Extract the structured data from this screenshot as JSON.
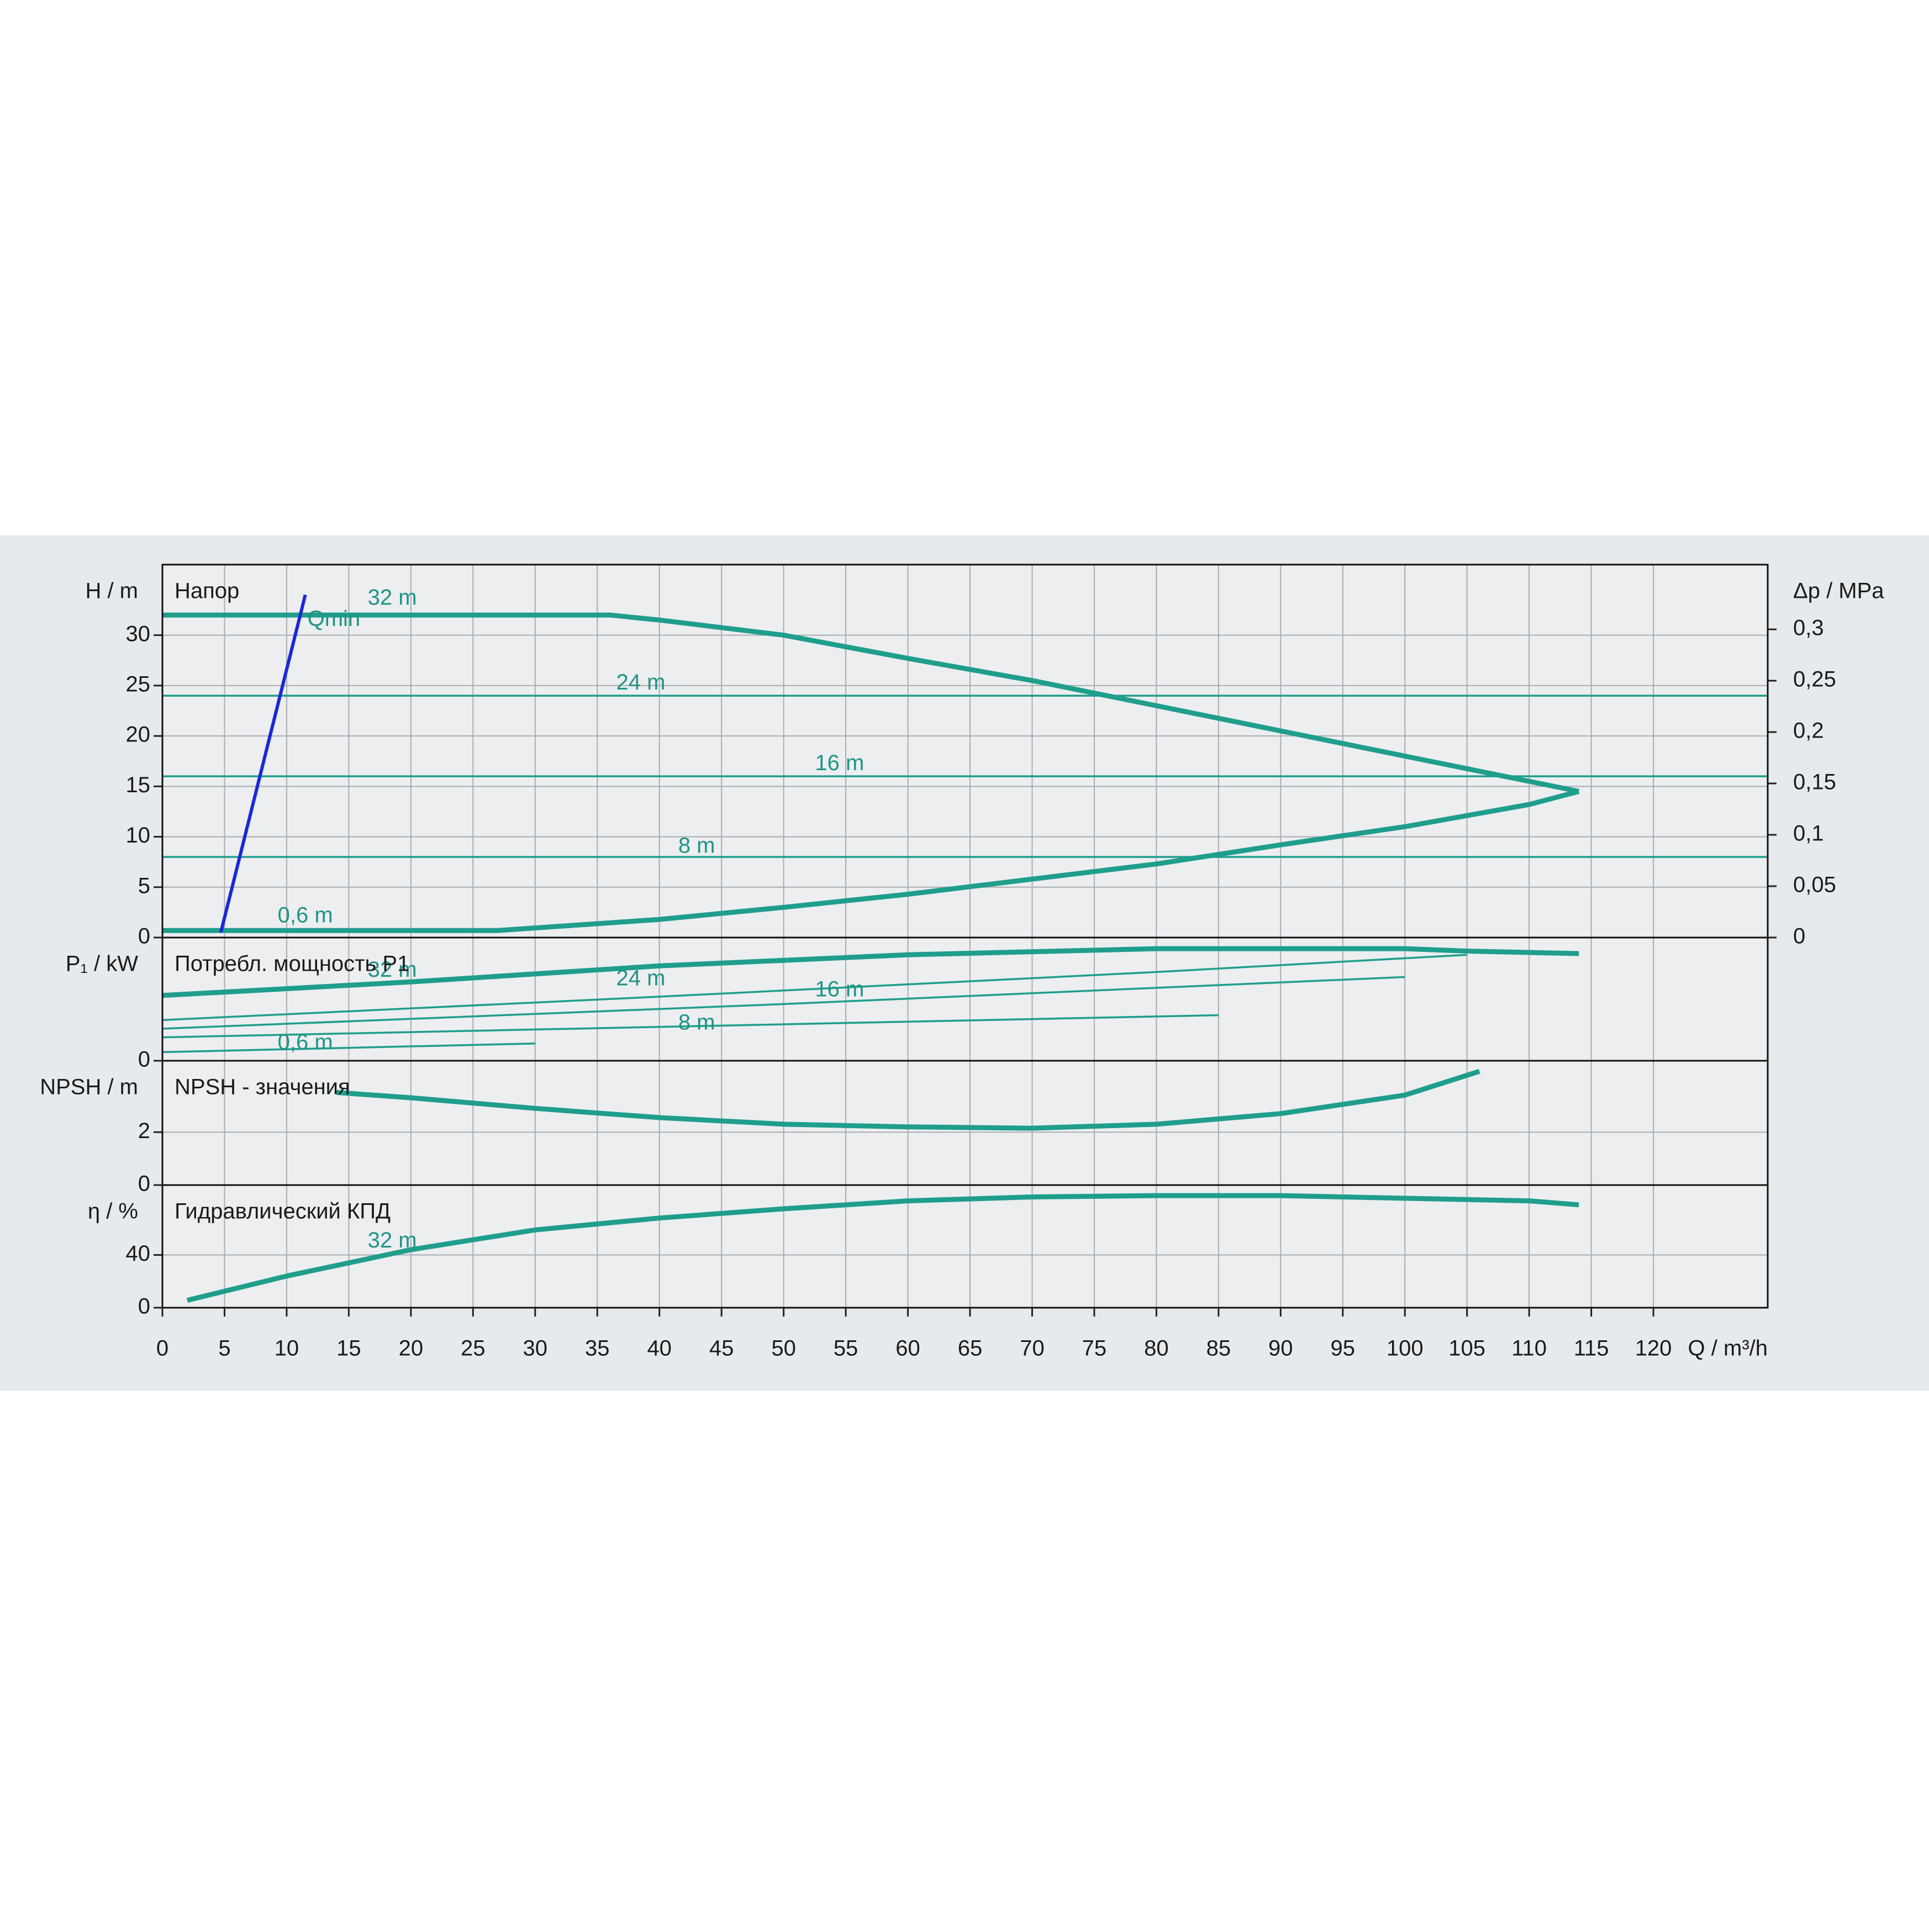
{
  "chart_data": [
    {
      "type": "line",
      "title": "Напор",
      "ylabel": "H / m",
      "y2label": "Δp / MPa",
      "xlim": [
        0,
        129.2
      ],
      "ylim": [
        0,
        37
      ],
      "yticks": [
        0,
        5,
        10,
        15,
        20,
        25,
        30
      ],
      "y2lim": [
        0,
        0.363
      ],
      "y2ticks": [
        0,
        {
          "value": 0.05,
          "label": "0,05"
        },
        {
          "value": 0.1,
          "label": "0,1"
        },
        {
          "value": 0.15,
          "label": "0,15"
        },
        {
          "value": 0.2,
          "label": "0,2"
        },
        {
          "value": 0.25,
          "label": "0,25"
        },
        {
          "value": 0.3,
          "label": "0,3"
        }
      ],
      "grid": true,
      "series": [
        {
          "name": "32 m",
          "color": "#1f9e8c",
          "x": [
            0,
            36,
            40,
            50,
            60,
            70,
            80,
            90,
            100,
            110,
            114
          ],
          "values": [
            32,
            32,
            31.5,
            30,
            27.7,
            25.5,
            23,
            20.5,
            18,
            15.5,
            14.5
          ]
        },
        {
          "name": "24 m",
          "color": "#1f9e8c",
          "x": [
            0,
            129.2
          ],
          "values": [
            24,
            24
          ]
        },
        {
          "name": "16 m",
          "color": "#1f9e8c",
          "x": [
            0,
            129.2
          ],
          "values": [
            16,
            16
          ]
        },
        {
          "name": "8 m",
          "color": "#1f9e8c",
          "x": [
            0,
            129.2
          ],
          "values": [
            8,
            8
          ]
        },
        {
          "name": "0,6 m",
          "color": "#1f9e8c",
          "x": [
            0,
            27,
            40,
            50,
            60,
            70,
            80,
            90,
            100,
            110,
            114
          ],
          "values": [
            0.7,
            0.7,
            1.8,
            3,
            4.3,
            5.8,
            7.3,
            9.2,
            11,
            13.2,
            14.5
          ]
        },
        {
          "name": "Qmin",
          "color": "#1a28d6",
          "x": [
            4.7,
            11.5
          ],
          "values": [
            0.5,
            34
          ]
        }
      ]
    },
    {
      "type": "line",
      "title": "Потребл. мощность P1",
      "ylabel": "P₁ / kW",
      "xlim": [
        0,
        129.2
      ],
      "ylim": [
        0,
        5
      ],
      "yticks": [
        0
      ],
      "grid": true,
      "series": [
        {
          "name": "32 m",
          "color": "#1f9e8c",
          "x": [
            0,
            20,
            40,
            60,
            80,
            100,
            105,
            114
          ],
          "values": [
            2.65,
            3.2,
            3.85,
            4.3,
            4.55,
            4.55,
            4.45,
            4.35
          ]
        },
        {
          "name": "24 m",
          "color": "#1f9e8c",
          "x": [
            0,
            40,
            80,
            105
          ],
          "values": [
            1.65,
            2.6,
            3.6,
            4.3
          ]
        },
        {
          "name": "16 m",
          "color": "#1f9e8c",
          "x": [
            0,
            50,
            100
          ],
          "values": [
            1.3,
            2.3,
            3.4
          ]
        },
        {
          "name": "8 m",
          "color": "#1f9e8c",
          "x": [
            0,
            85
          ],
          "values": [
            0.95,
            1.85
          ]
        },
        {
          "name": "0,6 m",
          "color": "#1f9e8c",
          "x": [
            0,
            30
          ],
          "values": [
            0.35,
            0.7
          ]
        }
      ]
    },
    {
      "type": "line",
      "title": "NPSH - значения",
      "ylabel": "NPSH / m",
      "xlim": [
        0,
        129.2
      ],
      "ylim": [
        0,
        4.7
      ],
      "yticks": [
        0,
        2
      ],
      "grid": true,
      "series": [
        {
          "color": "#1f9e8c",
          "x": [
            14,
            20,
            30,
            40,
            50,
            60,
            70,
            80,
            90,
            100,
            106
          ],
          "values": [
            3.5,
            3.3,
            2.9,
            2.55,
            2.3,
            2.2,
            2.15,
            2.3,
            2.7,
            3.4,
            4.3
          ]
        }
      ]
    },
    {
      "type": "line",
      "title": "Гидравлический КПД",
      "ylabel": "η / %",
      "xlabel": "Q / m³/h",
      "xlim": [
        0,
        129.2
      ],
      "ylim": [
        0,
        93
      ],
      "yticks": [
        0,
        40
      ],
      "xticks": [
        0,
        5,
        10,
        15,
        20,
        25,
        30,
        35,
        40,
        45,
        50,
        55,
        60,
        65,
        70,
        75,
        80,
        85,
        90,
        95,
        100,
        105,
        110,
        115,
        120
      ],
      "grid": true,
      "series": [
        {
          "name": "32 m",
          "color": "#1f9e8c",
          "x": [
            2,
            10,
            20,
            30,
            40,
            50,
            60,
            70,
            80,
            90,
            100,
            110,
            114
          ],
          "values": [
            5.6,
            24,
            44,
            59,
            68,
            75,
            81,
            84,
            85,
            85,
            83,
            81,
            78
          ]
        }
      ]
    }
  ]
}
